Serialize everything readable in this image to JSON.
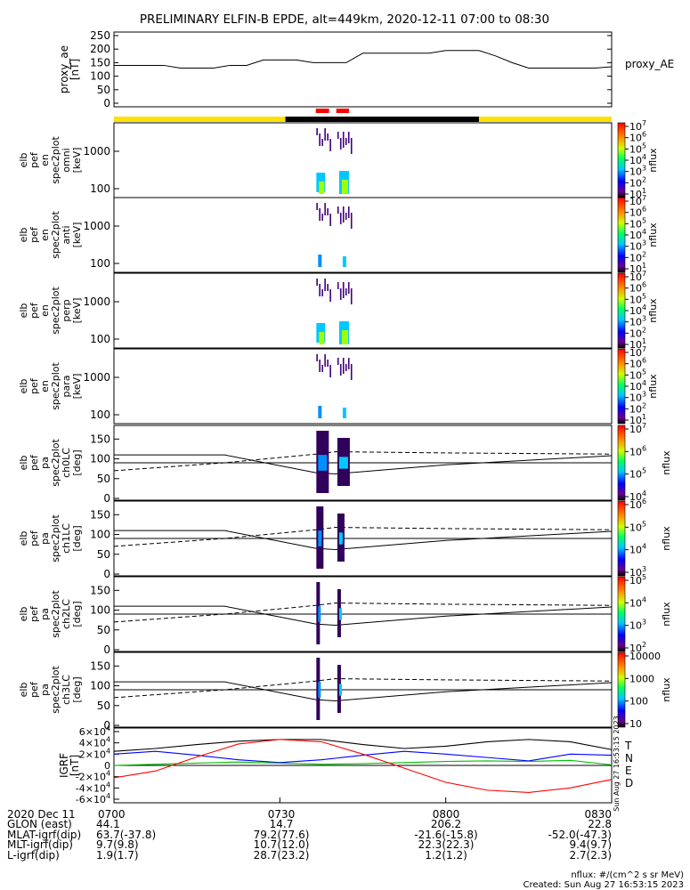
{
  "title": "PRELIMINARY ELFIN-B EPDE, alt=449km, 2020-12-11 07:00 to 08:30",
  "ae_panel": {
    "ylabel": [
      "proxy_ae",
      "[nT]"
    ],
    "legend": "proxy_AE",
    "yticks": [
      "0",
      "50",
      "100",
      "150",
      "200",
      "250"
    ]
  },
  "spec_panels": [
    {
      "ylabel": [
        "elb",
        "pef",
        "en",
        "spec2plot",
        "omni",
        "[keV]"
      ],
      "yticks": [
        "100",
        "1000"
      ],
      "cb_ticks": [
        "10^1",
        "10^2",
        "10^3",
        "10^4",
        "10^5",
        "10^6",
        "10^7"
      ],
      "cb_label": "nflux"
    },
    {
      "ylabel": [
        "elb",
        "pef",
        "en",
        "spec2plot",
        "anti",
        "[keV]"
      ],
      "yticks": [
        "100",
        "1000"
      ],
      "cb_ticks": [
        "10^1",
        "10^2",
        "10^3",
        "10^4",
        "10^5",
        "10^6",
        "10^7"
      ],
      "cb_label": "nflux"
    },
    {
      "ylabel": [
        "elb",
        "pef",
        "en",
        "spec2plot",
        "perp",
        "[keV]"
      ],
      "yticks": [
        "100",
        "1000"
      ],
      "cb_ticks": [
        "10^1",
        "10^2",
        "10^3",
        "10^4",
        "10^5",
        "10^6",
        "10^7"
      ],
      "cb_label": "nflux"
    },
    {
      "ylabel": [
        "elb",
        "pef",
        "en",
        "spec2plot",
        "para",
        "[keV]"
      ],
      "yticks": [
        "100",
        "1000"
      ],
      "cb_ticks": [
        "10^1",
        "10^2",
        "10^3",
        "10^4",
        "10^5",
        "10^6",
        "10^7"
      ],
      "cb_label": "nflux"
    }
  ],
  "pa_panels": [
    {
      "ylabel": [
        "elb",
        "pef",
        "pa",
        "spec2plot",
        "ch0LC",
        "[deg]"
      ],
      "yticks": [
        "0",
        "50",
        "100",
        "150"
      ],
      "cb_ticks": [
        "10^4",
        "10^5",
        "10^6",
        "10^7"
      ],
      "cb_label": "nflux"
    },
    {
      "ylabel": [
        "elb",
        "pef",
        "pa",
        "spec2plot",
        "ch1LC",
        "[deg]"
      ],
      "yticks": [
        "0",
        "50",
        "100",
        "150"
      ],
      "cb_ticks": [
        "10^3",
        "10^4",
        "10^5",
        "10^6"
      ],
      "cb_label": "nflux"
    },
    {
      "ylabel": [
        "elb",
        "pef",
        "pa",
        "spec2plot",
        "ch2LC",
        "[deg]"
      ],
      "yticks": [
        "0",
        "50",
        "100",
        "150"
      ],
      "cb_ticks": [
        "10^2",
        "10^3",
        "10^4",
        "10^5"
      ],
      "cb_label": "nflux"
    },
    {
      "ylabel": [
        "elb",
        "pef",
        "pa",
        "spec2plot",
        "ch3LC",
        "[deg]"
      ],
      "yticks": [
        "0",
        "50",
        "100",
        "150"
      ],
      "cb_ticks": [
        "10",
        "100",
        "1000",
        "10000"
      ],
      "cb_label": "nflux"
    }
  ],
  "igrf_panel": {
    "ylabel": [
      "IGRF",
      "[nT]"
    ],
    "yticks": [
      "-6×10^4",
      "-4×10^4",
      "-2×10^4",
      "0",
      "2×10^4",
      "4×10^4",
      "6×10^4"
    ],
    "legend": [
      {
        "label": "T",
        "color": "#000000"
      },
      {
        "label": "N",
        "color": "#0000ff"
      },
      {
        "label": "E",
        "color": "#00c000"
      },
      {
        "label": "D",
        "color": "#ff0000"
      }
    ],
    "stamp": "Sun Aug 27 16:53:15 2023"
  },
  "time_axis": {
    "row_labels": [
      "2020 Dec 11",
      "GLON (east)",
      "MLAT-igrf(dip)",
      "MLT-igrf(dip)",
      "L-igrf(dip)"
    ],
    "columns": [
      {
        "time": "0700",
        "values": [
          "44.1",
          "63.7(-37.8)",
          "9.7(9.8)",
          "1.9(1.7)"
        ]
      },
      {
        "time": "0730",
        "values": [
          "14.7",
          "79.2(77.6)",
          "10.7(12.0)",
          "28.7(23.2)"
        ]
      },
      {
        "time": "0800",
        "values": [
          "206.2",
          "-21.6(-15.8)",
          "22.3(22.3)",
          "1.2(1.2)"
        ]
      },
      {
        "time": "0830",
        "values": [
          "22.8",
          "-52.0(-47.3)",
          "9.4(9.7)",
          "2.7(2.3)"
        ]
      }
    ]
  },
  "footer": {
    "units": "nflux: #/(cm^2 s sr MeV)",
    "created": "Created: Sun Aug 27 16:53:15 2023"
  },
  "colors": {
    "sunlight_bar": "#ffe000",
    "shadow_bar": "#000000",
    "science_marker": "#ff0000"
  },
  "chart_data": {
    "type": "line",
    "x_range_minutes": [
      0,
      90
    ],
    "x_ticks_minutes": [
      0,
      30,
      60,
      90
    ],
    "proxy_ae": {
      "ylim": [
        0,
        250
      ],
      "x": [
        0,
        3,
        6,
        9,
        12,
        15,
        18,
        21,
        24,
        27,
        30,
        33,
        36,
        39,
        42,
        45,
        48,
        51,
        54,
        57,
        60,
        63,
        66,
        69,
        72,
        75,
        78,
        81,
        84,
        87,
        90
      ],
      "values": [
        140,
        140,
        140,
        140,
        130,
        130,
        130,
        140,
        140,
        160,
        160,
        160,
        150,
        150,
        150,
        185,
        185,
        185,
        185,
        185,
        195,
        195,
        195,
        175,
        150,
        130,
        130,
        130,
        130,
        130,
        135
      ]
    },
    "fgm_shadow_minutes": [
      [
        0,
        31
      ],
      [
        66,
        90
      ]
    ],
    "science_zones_minutes": [
      [
        36.5,
        38.9
      ],
      [
        40.2,
        42.5
      ]
    ],
    "igrf": {
      "ylim": [
        -60000,
        60000
      ],
      "x": [
        0,
        7.5,
        15,
        22.5,
        30,
        37.5,
        45,
        52.5,
        60,
        67.5,
        75,
        82.5,
        90
      ],
      "series": [
        {
          "name": "T",
          "values": [
            25000,
            30000,
            37000,
            43000,
            46000,
            46000,
            37000,
            30000,
            34000,
            42000,
            46000,
            42000,
            28000
          ]
        },
        {
          "name": "N",
          "values": [
            20000,
            25000,
            18000,
            10000,
            5000,
            10000,
            18000,
            25000,
            20000,
            14000,
            8000,
            20000,
            18000
          ]
        },
        {
          "name": "E",
          "values": [
            0,
            2000,
            4000,
            6000,
            4000,
            2000,
            3000,
            5000,
            7000,
            8000,
            7000,
            9000,
            1000
          ]
        },
        {
          "name": "D",
          "values": [
            -22000,
            -10000,
            15000,
            38000,
            46000,
            42000,
            20000,
            -5000,
            -30000,
            -44000,
            -48000,
            -40000,
            -25000
          ]
        }
      ]
    }
  }
}
